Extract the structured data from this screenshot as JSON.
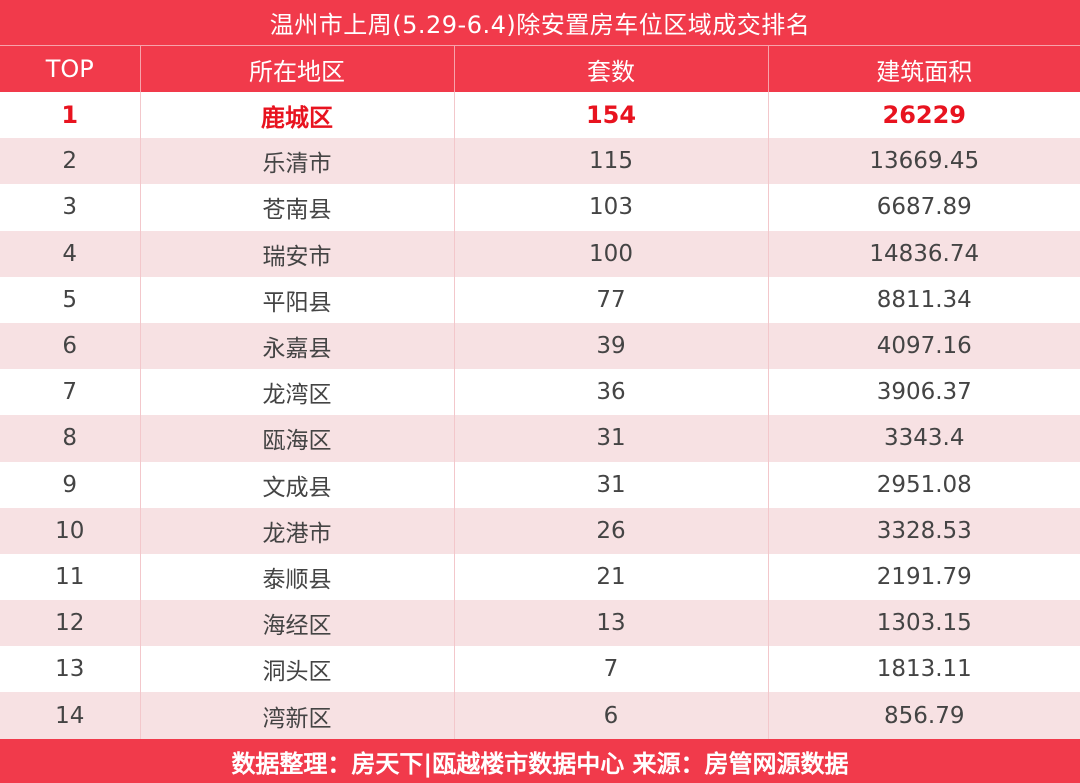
{
  "title": "温州市上周(5.29-6.4)除安置房车位区域成交排名",
  "headers": [
    "TOP",
    "所在地区",
    "套数",
    "建筑面积"
  ],
  "rows": [
    {
      "rank": "1",
      "region": "鹿城区",
      "count": "154",
      "area": "26229"
    },
    {
      "rank": "2",
      "region": "乐清市",
      "count": "115",
      "area": "13669.45"
    },
    {
      "rank": "3",
      "region": "苍南县",
      "count": "103",
      "area": "6687.89"
    },
    {
      "rank": "4",
      "region": "瑞安市",
      "count": "100",
      "area": "14836.74"
    },
    {
      "rank": "5",
      "region": "平阳县",
      "count": "77",
      "area": "8811.34"
    },
    {
      "rank": "6",
      "region": "永嘉县",
      "count": "39",
      "area": "4097.16"
    },
    {
      "rank": "7",
      "region": "龙湾区",
      "count": "36",
      "area": "3906.37"
    },
    {
      "rank": "8",
      "region": "瓯海区",
      "count": "31",
      "area": "3343.4"
    },
    {
      "rank": "9",
      "region": "文成县",
      "count": "31",
      "area": "2951.08"
    },
    {
      "rank": "10",
      "region": "龙港市",
      "count": "26",
      "area": "3328.53"
    },
    {
      "rank": "11",
      "region": "泰顺县",
      "count": "21",
      "area": "2191.79"
    },
    {
      "rank": "12",
      "region": "海经区",
      "count": "13",
      "area": "1303.15"
    },
    {
      "rank": "13",
      "region": "洞头区",
      "count": "7",
      "area": "1813.11"
    },
    {
      "rank": "14",
      "region": "湾新区",
      "count": "6",
      "area": "856.79"
    }
  ],
  "footer": "数据整理：房天下|瓯越楼市数据中心 来源：房管网源数据",
  "colors": {
    "header_red": "#f13a4b",
    "stripe_pink": "#f7e1e3",
    "top_text_red": "#e8131f"
  }
}
